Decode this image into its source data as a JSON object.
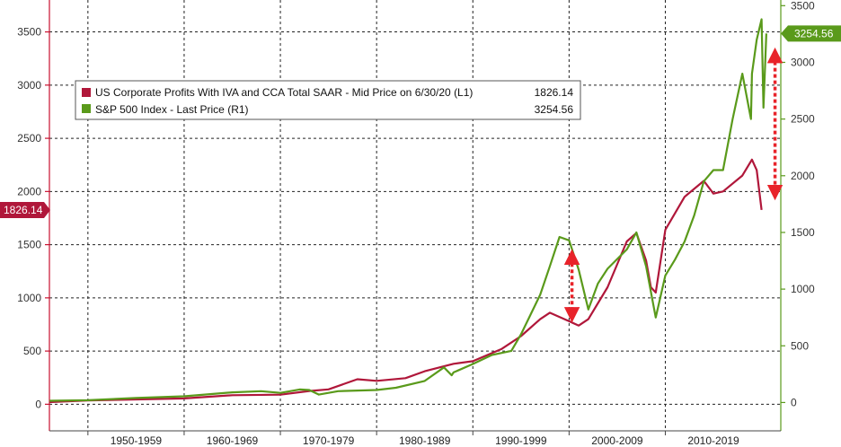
{
  "chart_data": {
    "type": "line",
    "x_categories": [
      "1950-1959",
      "1960-1969",
      "1970-1979",
      "1980-1989",
      "1990-1999",
      "2000-2009",
      "2010-2019"
    ],
    "left_axis": {
      "ticks": [
        0,
        500,
        1000,
        1500,
        2000,
        2500,
        3000,
        3500
      ],
      "range": [
        -250,
        3800
      ],
      "color": "#c8102e"
    },
    "right_axis": {
      "ticks": [
        0,
        500,
        1000,
        1500,
        2000,
        2500,
        3000,
        3500
      ],
      "range": [
        -250,
        3550
      ],
      "color": "#5a9a1b"
    },
    "grid": true,
    "legend_placement": "top-left",
    "series": [
      {
        "name": "US Corporate Profits With IVA and CCA Total SAAR - Mid Price on 6/30/20 (L1)",
        "legend_value": "1826.14",
        "last_value_label": "1826.14",
        "axis": "left",
        "color": "#b0173a",
        "x": [
          1946,
          1950,
          1955,
          1960,
          1965,
          1970,
          1973,
          1975,
          1978,
          1980,
          1983,
          1985,
          1988,
          1990,
          1993,
          1995,
          1997,
          1998,
          2000,
          2001,
          2002,
          2004,
          2006,
          2007,
          2008,
          2008.5,
          2009,
          2010,
          2012,
          2014,
          2015,
          2016,
          2018,
          2019,
          2019.5,
          2020
        ],
        "y": [
          20,
          35,
          45,
          55,
          85,
          90,
          125,
          140,
          235,
          220,
          245,
          310,
          380,
          405,
          520,
          640,
          800,
          860,
          780,
          740,
          800,
          1100,
          1530,
          1610,
          1350,
          1100,
          1050,
          1640,
          1950,
          2100,
          1980,
          2000,
          2150,
          2300,
          2200,
          1826.14
        ]
      },
      {
        "name": "S&P 500 Index - Last Price (R1)",
        "legend_value": "3254.56",
        "last_value_label": "3254.56",
        "axis": "right",
        "color": "#5a9a1b",
        "x": [
          1946,
          1950,
          1955,
          1960,
          1965,
          1968,
          1970,
          1972,
          1973,
          1974,
          1976,
          1980,
          1982,
          1985,
          1987,
          1987.8,
          1988,
          1990,
          1992,
          1994,
          1995,
          1997,
          1998,
          1999,
          2000,
          2001,
          2002,
          2003,
          2004,
          2006,
          2007,
          2008,
          2009,
          2010,
          2011,
          2012,
          2013,
          2014,
          2015,
          2016,
          2017,
          2018,
          2018.9,
          2019,
          2019.5,
          2020,
          2020.2,
          2020.5
        ],
        "y": [
          15,
          20,
          40,
          55,
          90,
          100,
          85,
          115,
          110,
          70,
          100,
          110,
          130,
          190,
          310,
          240,
          265,
          340,
          420,
          455,
          600,
          950,
          1200,
          1460,
          1430,
          1170,
          820,
          1050,
          1180,
          1350,
          1500,
          1200,
          750,
          1120,
          1260,
          1420,
          1650,
          1950,
          2050,
          2050,
          2500,
          2900,
          2500,
          2900,
          3200,
          3380,
          2600,
          3254.56
        ]
      }
    ],
    "annotations": [
      {
        "type": "double-arrow",
        "color": "#e8232a",
        "x": 2000.3,
        "from_left_value": 1385,
        "to_left_value": 840
      },
      {
        "type": "double-arrow",
        "color": "#e8232a",
        "x": 2021.4,
        "from_left_value": 3280,
        "to_left_value": 1990
      }
    ]
  }
}
